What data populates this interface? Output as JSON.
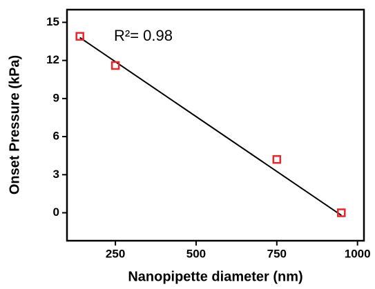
{
  "chart_data": {
    "type": "scatter",
    "x_label": "Nanopipette diameter (nm)",
    "y_label": "Onset Pressure (kPa)",
    "annotation": "R²= 0.98",
    "series": [
      {
        "x": [
          140,
          250,
          750,
          950
        ],
        "values": [
          13.9,
          11.6,
          4.2,
          0
        ],
        "color": "#e8262b"
      }
    ],
    "fit": {
      "x": [
        140,
        950
      ],
      "values": [
        13.8,
        -0.2
      ],
      "color": "#000000"
    },
    "xlim": [
      100,
      1020
    ],
    "xticks": [
      250,
      500,
      750,
      1000
    ],
    "ylim": [
      -2.2,
      16
    ],
    "yticks": [
      0,
      3,
      6,
      9,
      12,
      15
    ]
  }
}
